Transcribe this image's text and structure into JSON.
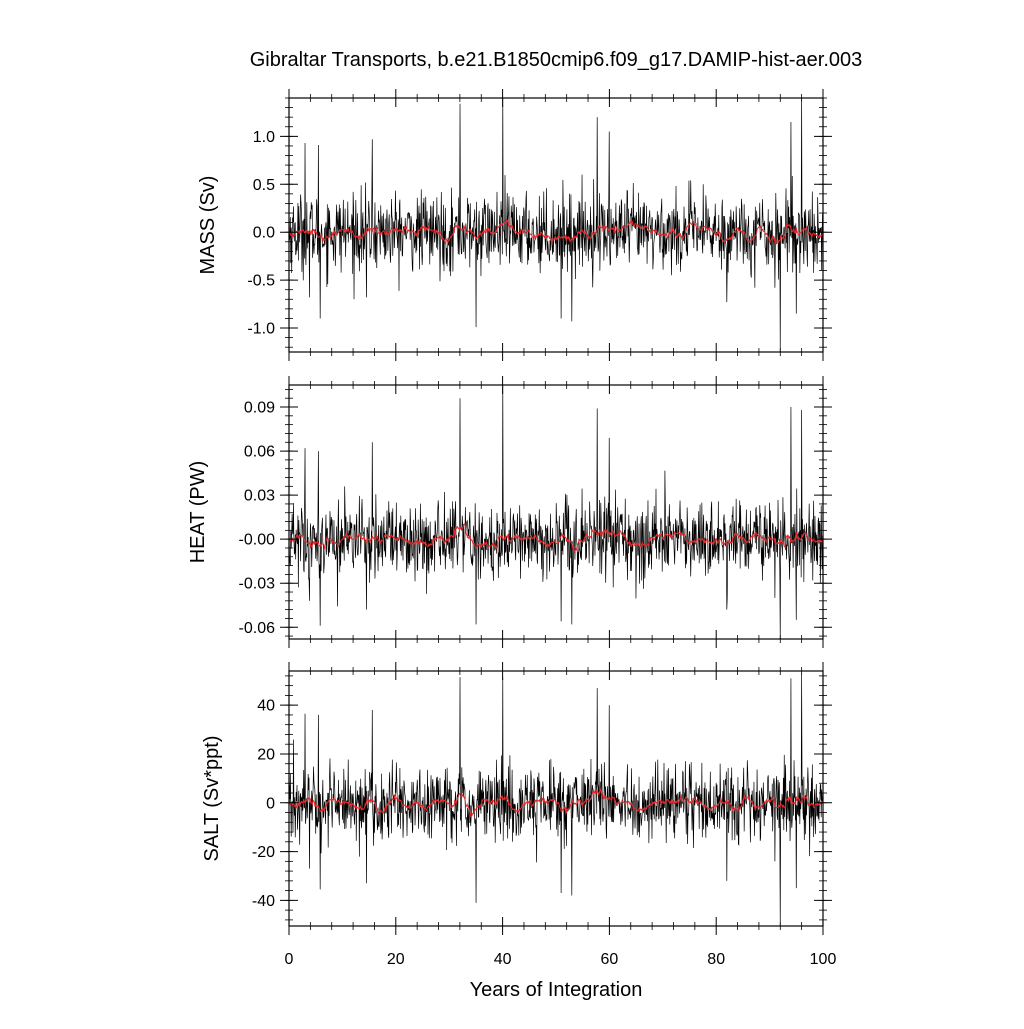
{
  "chart_data": {
    "type": "line",
    "title": "Gibraltar Transports, b.e21.B1850cmip6.f09_g17.DAMIP-hist-aer.003",
    "xlabel": "Years of Integration",
    "xlim": [
      0,
      100
    ],
    "x_ticks": [
      "0",
      "20",
      "40",
      "60",
      "80",
      "100"
    ],
    "grid": false,
    "series_colors": {
      "monthly": "#000000",
      "smoothed": "#e8292b"
    },
    "panels": [
      {
        "ylabel": "MASS (Sv)",
        "ylim": [
          -1.25,
          1.4
        ],
        "y_tick_values": [
          -1.0,
          -0.5,
          0.0,
          0.5,
          1.0
        ],
        "y_tick_labels": [
          "-1.0",
          "-0.5",
          "0.0",
          "0.5",
          "1.0"
        ],
        "amplitude": 0.2,
        "spikes": [
          {
            "x": 3.0,
            "y": 0.93
          },
          {
            "x": 3.8,
            "y": -0.68
          },
          {
            "x": 5.5,
            "y": 0.91
          },
          {
            "x": 5.8,
            "y": -0.9
          },
          {
            "x": 14.5,
            "y": -0.68
          },
          {
            "x": 15.6,
            "y": 0.97
          },
          {
            "x": 32.0,
            "y": 1.34
          },
          {
            "x": 35.0,
            "y": -0.99
          },
          {
            "x": 40.0,
            "y": 1.4
          },
          {
            "x": 51.0,
            "y": -0.9
          },
          {
            "x": 53.0,
            "y": -0.93
          },
          {
            "x": 57.7,
            "y": 1.2
          },
          {
            "x": 60.0,
            "y": 1.05
          },
          {
            "x": 82.0,
            "y": -0.73
          },
          {
            "x": 91.0,
            "y": -0.58
          },
          {
            "x": 92.0,
            "y": -1.25
          },
          {
            "x": 94.0,
            "y": 1.15
          },
          {
            "x": 95.0,
            "y": -0.85
          },
          {
            "x": 96.0,
            "y": 1.4
          }
        ]
      },
      {
        "ylabel": "HEAT (PW)",
        "ylim": [
          -0.068,
          0.105
        ],
        "y_tick_values": [
          -0.06,
          -0.03,
          0.0,
          0.03,
          0.06,
          0.09
        ],
        "y_tick_labels": [
          "-0.06",
          "-0.03",
          "-0.00",
          "0.03",
          "0.06",
          "0.09"
        ],
        "amplitude": 0.013,
        "spikes": [
          {
            "x": 3.0,
            "y": 0.062
          },
          {
            "x": 3.8,
            "y": -0.042
          },
          {
            "x": 5.5,
            "y": 0.06
          },
          {
            "x": 5.8,
            "y": -0.059
          },
          {
            "x": 14.5,
            "y": -0.048
          },
          {
            "x": 15.6,
            "y": 0.066
          },
          {
            "x": 32.0,
            "y": 0.096
          },
          {
            "x": 35.0,
            "y": -0.058
          },
          {
            "x": 40.0,
            "y": 0.105
          },
          {
            "x": 51.0,
            "y": -0.056
          },
          {
            "x": 53.0,
            "y": -0.058
          },
          {
            "x": 57.7,
            "y": 0.089
          },
          {
            "x": 60.0,
            "y": 0.069
          },
          {
            "x": 82.0,
            "y": -0.048
          },
          {
            "x": 91.0,
            "y": -0.04
          },
          {
            "x": 92.0,
            "y": -0.068
          },
          {
            "x": 94.0,
            "y": 0.09
          },
          {
            "x": 95.0,
            "y": -0.055
          },
          {
            "x": 96.0,
            "y": 0.088
          }
        ]
      },
      {
        "ylabel": "SALT (Sv*ppt)",
        "ylim": [
          -50.5,
          54
        ],
        "y_tick_values": [
          -40,
          -20,
          0,
          20,
          40
        ],
        "y_tick_labels": [
          "-40",
          "-20",
          "0",
          "20",
          "40"
        ],
        "amplitude": 7.5,
        "spikes": [
          {
            "x": 3.0,
            "y": 36.5
          },
          {
            "x": 3.8,
            "y": -27
          },
          {
            "x": 5.5,
            "y": 36
          },
          {
            "x": 5.8,
            "y": -35.5
          },
          {
            "x": 14.5,
            "y": -33
          },
          {
            "x": 15.6,
            "y": 38
          },
          {
            "x": 32.0,
            "y": 51.5
          },
          {
            "x": 35.0,
            "y": -41
          },
          {
            "x": 40.0,
            "y": 51.5
          },
          {
            "x": 51.0,
            "y": -37
          },
          {
            "x": 53.0,
            "y": -38
          },
          {
            "x": 57.7,
            "y": 47
          },
          {
            "x": 60.0,
            "y": 40
          },
          {
            "x": 82.0,
            "y": -32
          },
          {
            "x": 91.0,
            "y": -24
          },
          {
            "x": 92.0,
            "y": -50.5
          },
          {
            "x": 94.0,
            "y": 51
          },
          {
            "x": 95.0,
            "y": -35
          },
          {
            "x": 96.0,
            "y": 53
          }
        ]
      }
    ]
  }
}
